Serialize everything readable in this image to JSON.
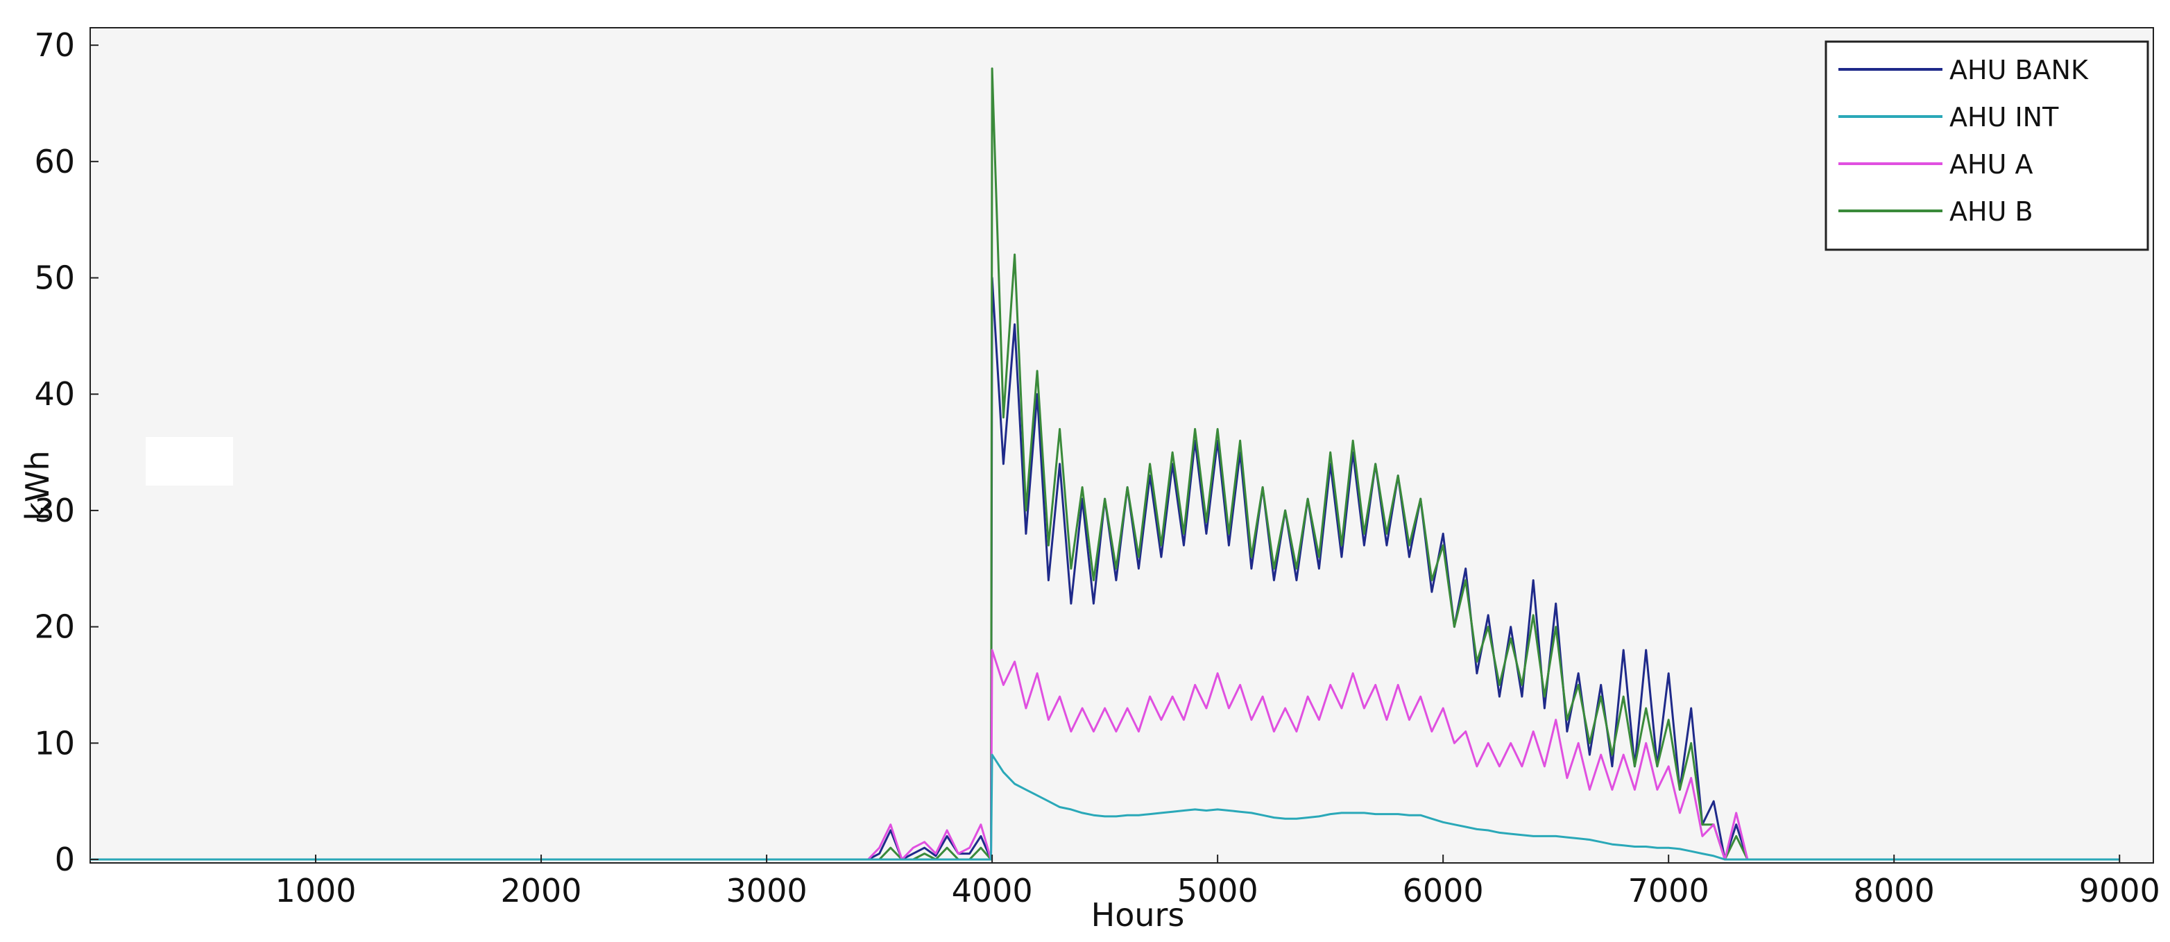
{
  "chart_data": {
    "type": "line",
    "x_label": "Hours",
    "y_label": "kWh",
    "x": [
      0,
      3450,
      3500,
      3550,
      3600,
      3650,
      3700,
      3750,
      3800,
      3850,
      3900,
      3950,
      3995,
      4000,
      4050,
      4100,
      4150,
      4200,
      4250,
      4300,
      4350,
      4400,
      4450,
      4500,
      4550,
      4600,
      4650,
      4700,
      4750,
      4800,
      4850,
      4900,
      4950,
      5000,
      5050,
      5100,
      5150,
      5200,
      5250,
      5300,
      5350,
      5400,
      5450,
      5500,
      5550,
      5600,
      5650,
      5700,
      5750,
      5800,
      5850,
      5900,
      5950,
      6000,
      6050,
      6100,
      6150,
      6200,
      6250,
      6300,
      6350,
      6400,
      6450,
      6500,
      6550,
      6600,
      6650,
      6700,
      6750,
      6800,
      6850,
      6900,
      6950,
      7000,
      7050,
      7100,
      7150,
      7200,
      7250,
      7300,
      7350,
      9000
    ],
    "series": [
      {
        "name": "AHU BANK",
        "color": "#1f2a8a",
        "values": [
          0,
          0,
          0.5,
          2.5,
          0,
          0.5,
          1,
          0.3,
          2,
          0.5,
          0.5,
          2,
          0,
          50,
          34,
          46,
          28,
          40,
          24,
          34,
          22,
          31,
          22,
          31,
          24,
          32,
          25,
          33,
          26,
          34,
          27,
          36,
          28,
          36,
          27,
          35,
          25,
          32,
          24,
          30,
          24,
          31,
          25,
          34,
          26,
          35,
          27,
          34,
          27,
          33,
          26,
          31,
          23,
          28,
          20,
          25,
          16,
          21,
          14,
          20,
          14,
          24,
          13,
          22,
          11,
          16,
          9,
          15,
          8,
          18,
          8,
          18,
          8,
          16,
          6,
          13,
          3,
          5,
          0,
          3,
          0,
          0
        ]
      },
      {
        "name": "AHU INT",
        "color": "#2aa8b8",
        "values": [
          0,
          0,
          0,
          0,
          0,
          0,
          0,
          0,
          0,
          0,
          0,
          0,
          0,
          9,
          7.5,
          6.5,
          6,
          5.5,
          5,
          4.5,
          4.3,
          4,
          3.8,
          3.7,
          3.7,
          3.8,
          3.8,
          3.9,
          4,
          4.1,
          4.2,
          4.3,
          4.2,
          4.3,
          4.2,
          4.1,
          4,
          3.8,
          3.6,
          3.5,
          3.5,
          3.6,
          3.7,
          3.9,
          4,
          4,
          4,
          3.9,
          3.9,
          3.9,
          3.8,
          3.8,
          3.5,
          3.2,
          3,
          2.8,
          2.6,
          2.5,
          2.3,
          2.2,
          2.1,
          2,
          2,
          2,
          1.9,
          1.8,
          1.7,
          1.5,
          1.3,
          1.2,
          1.1,
          1.1,
          1,
          1,
          0.9,
          0.7,
          0.5,
          0.3,
          0,
          0,
          0,
          0
        ]
      },
      {
        "name": "AHU A",
        "color": "#e050e0",
        "values": [
          0,
          0,
          1,
          3,
          0,
          1,
          1.5,
          0.5,
          2.5,
          0.5,
          1,
          3,
          0,
          18,
          15,
          17,
          13,
          16,
          12,
          14,
          11,
          13,
          11,
          13,
          11,
          13,
          11,
          14,
          12,
          14,
          12,
          15,
          13,
          16,
          13,
          15,
          12,
          14,
          11,
          13,
          11,
          14,
          12,
          15,
          13,
          16,
          13,
          15,
          12,
          15,
          12,
          14,
          11,
          13,
          10,
          11,
          8,
          10,
          8,
          10,
          8,
          11,
          8,
          12,
          7,
          10,
          6,
          9,
          6,
          9,
          6,
          10,
          6,
          8,
          4,
          7,
          2,
          3,
          0,
          4,
          0,
          0
        ]
      },
      {
        "name": "AHU B",
        "color": "#3a8a3a",
        "values": [
          0,
          0,
          0,
          1,
          0,
          0,
          0.5,
          0,
          1,
          0,
          0,
          1,
          0,
          68,
          38,
          52,
          30,
          42,
          27,
          37,
          25,
          32,
          24,
          31,
          25,
          32,
          26,
          34,
          27,
          35,
          28,
          37,
          29,
          37,
          28,
          36,
          26,
          32,
          25,
          30,
          25,
          31,
          26,
          35,
          27,
          36,
          28,
          34,
          28,
          33,
          27,
          31,
          24,
          27,
          20,
          24,
          17,
          20,
          15,
          19,
          15,
          21,
          14,
          20,
          12,
          15,
          10,
          14,
          9,
          14,
          8,
          13,
          8,
          12,
          6,
          10,
          3,
          3,
          0,
          2,
          0,
          0
        ]
      }
    ],
    "xlim": [
      0,
      9150
    ],
    "ylim": [
      -0.3,
      71.5
    ],
    "xticks": [
      1000,
      2000,
      3000,
      4000,
      5000,
      6000,
      7000,
      8000,
      9000
    ],
    "yticks": [
      0,
      10,
      20,
      30,
      40,
      50,
      60,
      70
    ],
    "legend": "top-right",
    "grid": false
  }
}
